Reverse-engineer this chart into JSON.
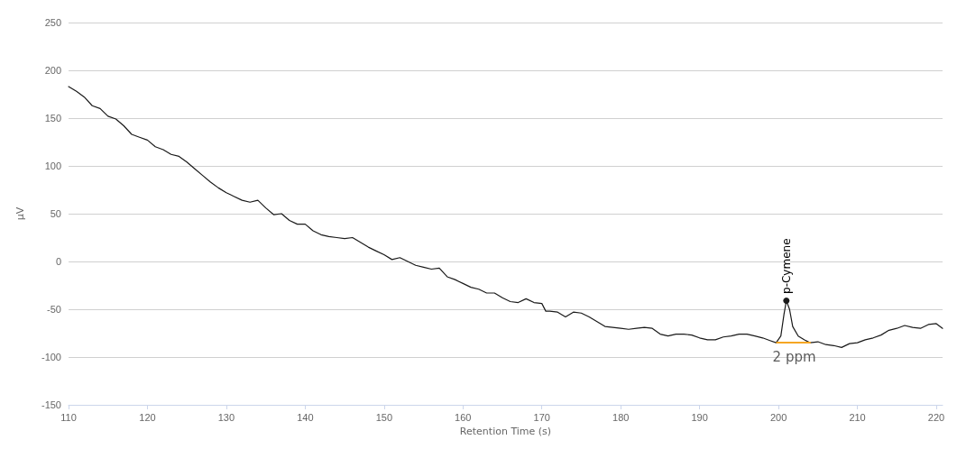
{
  "chart_data": {
    "type": "line",
    "xlabel": "Retention Time (s)",
    "ylabel": "μV",
    "xlim": [
      110,
      220.8
    ],
    "xticks": [
      110,
      120,
      130,
      140,
      150,
      160,
      170,
      180,
      190,
      200,
      210,
      220
    ],
    "ylim": [
      -150,
      250
    ],
    "yticks": [
      -150,
      -100,
      -50,
      0,
      50,
      100,
      150,
      200,
      250
    ],
    "grid": "y",
    "marker": "none",
    "line_style": "solid",
    "series": [
      {
        "color": "#1a1a1a",
        "x": [
          110,
          111,
          112,
          113,
          114,
          115,
          116,
          117,
          118,
          119,
          120,
          121,
          122,
          123,
          124,
          125,
          126,
          127,
          128,
          129,
          130,
          131,
          132,
          133,
          134,
          135,
          136,
          137,
          138,
          139,
          140,
          141,
          142,
          143,
          144,
          145,
          146,
          147,
          148,
          149,
          150,
          151,
          152,
          153,
          154,
          155,
          156,
          157,
          158,
          159,
          160,
          161,
          162,
          163,
          164,
          165,
          166,
          167,
          168,
          169,
          170,
          170.5,
          171,
          172,
          173,
          174,
          175,
          176,
          177,
          178,
          179,
          180,
          181,
          182,
          183,
          184,
          185,
          186,
          187,
          188,
          189,
          190,
          191,
          192,
          193,
          194,
          195,
          196,
          197,
          198,
          199,
          199.7,
          200.3,
          200.7,
          201,
          201.4,
          201.8,
          202.5,
          203.3,
          204,
          205,
          206,
          207,
          208,
          209,
          210,
          211,
          212,
          213,
          214,
          215,
          216,
          217,
          218,
          219,
          220,
          220.8
        ],
        "values": [
          183,
          178,
          172,
          163,
          160,
          152,
          149,
          142,
          133,
          130,
          127,
          120,
          117,
          112,
          110,
          104,
          97,
          90,
          83,
          77,
          72,
          68,
          64,
          62,
          64,
          56,
          49,
          50,
          43,
          39,
          39,
          32,
          28,
          26,
          25,
          24,
          25,
          20,
          15,
          11,
          7,
          2,
          4,
          0,
          -4,
          -6,
          -8,
          -7,
          -16,
          -19,
          -23,
          -27,
          -29,
          -33,
          -33,
          -38,
          -42,
          -43,
          -39,
          -43,
          -44,
          -52,
          -52,
          -53,
          -58,
          -53,
          -54,
          -58,
          -63,
          -68,
          -69,
          -70,
          -71,
          -70,
          -69,
          -70,
          -76,
          -78,
          -76,
          -76,
          -77,
          -80,
          -82,
          -82,
          -79,
          -78,
          -76,
          -76,
          -78,
          -80,
          -83,
          -85,
          -78,
          -55,
          -41,
          -50,
          -68,
          -78,
          -82,
          -85,
          -84,
          -87,
          -88,
          -90,
          -86,
          -85,
          -82,
          -80,
          -77,
          -72,
          -70,
          -67,
          -69,
          -70,
          -66,
          -65,
          -70
        ]
      },
      {
        "color": "#f5a623",
        "x": [
          199.8,
          204
        ],
        "values": [
          -85,
          -85
        ]
      }
    ],
    "annotations": [
      {
        "text": "p-Cymene",
        "x": 201,
        "y": -41
      },
      {
        "text": "2 ppm",
        "x": 202,
        "y": -85
      }
    ]
  }
}
